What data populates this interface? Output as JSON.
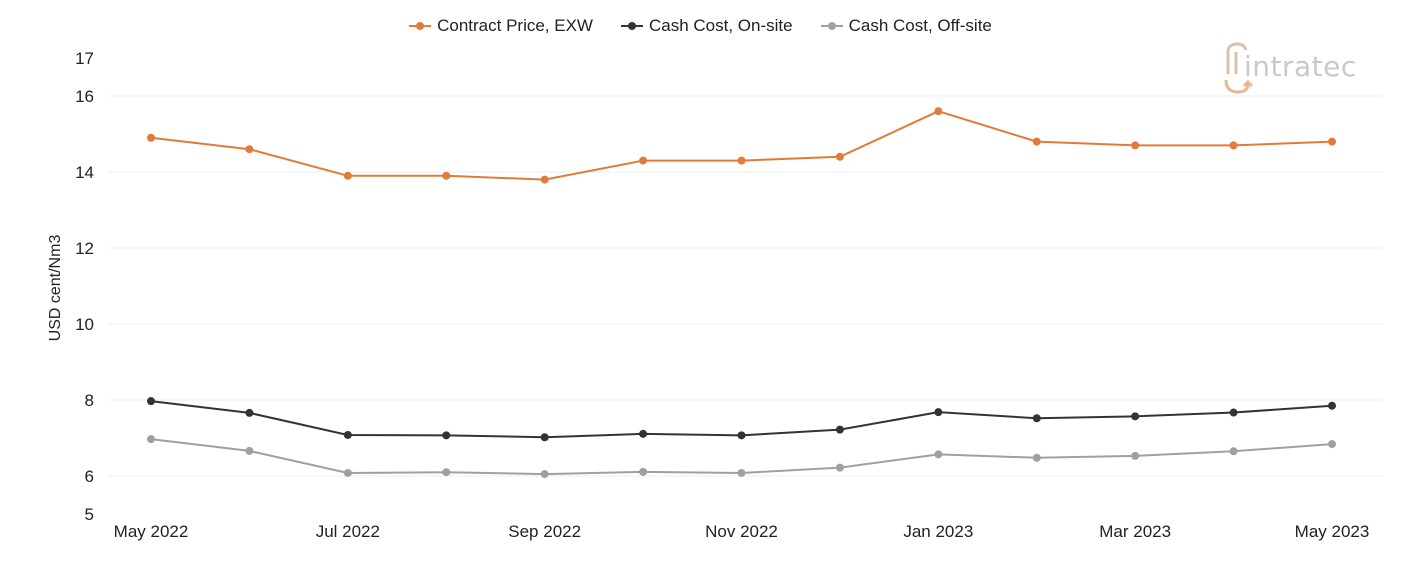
{
  "chart_data": {
    "type": "line",
    "x": [
      "May 2022",
      "Jun 2022",
      "Jul 2022",
      "Aug 2022",
      "Sep 2022",
      "Oct 2022",
      "Nov 2022",
      "Dec 2022",
      "Jan 2023",
      "Feb 2023",
      "Mar 2023",
      "Apr 2023",
      "May 2023"
    ],
    "x_tick_labels": [
      "May 2022",
      "Jul 2022",
      "Sep 2022",
      "Nov 2022",
      "Jan 2023",
      "Mar 2023",
      "May 2023"
    ],
    "series": [
      {
        "name": "Contract Price, EXW",
        "color": "#e07b39",
        "values": [
          14.9,
          14.6,
          13.9,
          13.9,
          13.8,
          14.3,
          14.3,
          14.4,
          15.6,
          14.8,
          14.7,
          14.7,
          14.8
        ]
      },
      {
        "name": "Cash Cost, On-site",
        "color": "#333333",
        "values": [
          7.97,
          7.66,
          7.08,
          7.07,
          7.02,
          7.11,
          7.07,
          7.22,
          7.68,
          7.52,
          7.57,
          7.67,
          7.85
        ]
      },
      {
        "name": "Cash Cost, Off-site",
        "color": "#a0a0a0",
        "values": [
          6.97,
          6.66,
          6.08,
          6.1,
          6.05,
          6.11,
          6.08,
          6.22,
          6.57,
          6.48,
          6.53,
          6.65,
          6.84
        ]
      }
    ],
    "ylabel": "USD cent/Nm3",
    "xlabel": "",
    "title": "",
    "ylim": [
      5,
      17
    ],
    "y_ticks": [
      5,
      6,
      8,
      10,
      12,
      14,
      16,
      17
    ],
    "grid": true,
    "legend_position": "top-center"
  },
  "watermark": {
    "text": "intratec",
    "color": "#c9c9c9"
  }
}
